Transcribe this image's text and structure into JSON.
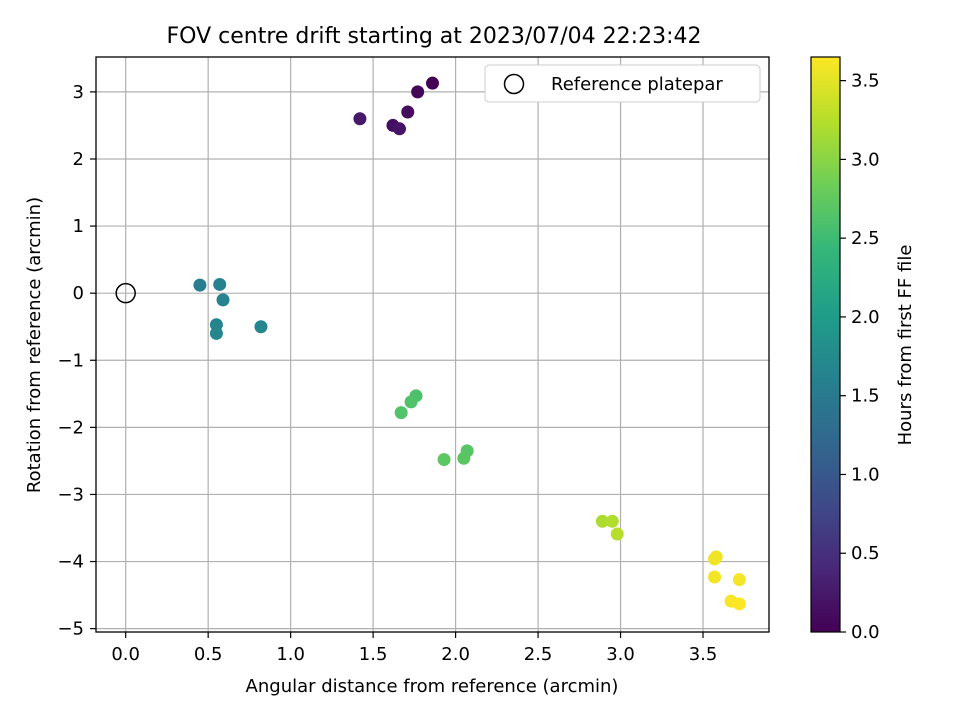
{
  "chart_data": {
    "type": "scatter",
    "title": "FOV centre drift starting at 2023/07/04 22:23:42",
    "xlabel": "Angular distance from reference (arcmin)",
    "ylabel": "Rotation from reference (arcmin)",
    "xlim": [
      -0.18,
      3.9
    ],
    "ylim": [
      -5.05,
      3.52
    ],
    "xticks": [
      "0.0",
      "0.5",
      "1.0",
      "1.5",
      "2.0",
      "2.5",
      "3.0",
      "3.5"
    ],
    "xtick_values": [
      0.0,
      0.5,
      1.0,
      1.5,
      2.0,
      2.5,
      3.0,
      3.5
    ],
    "yticks": [
      "3",
      "2",
      "1",
      "0",
      "−1",
      "−2",
      "−3",
      "−4",
      "−5"
    ],
    "ytick_values": [
      3,
      2,
      1,
      0,
      -1,
      -2,
      -3,
      -4,
      -5
    ],
    "grid": true,
    "legend": {
      "position": "top-right",
      "entries": [
        "Reference platepar"
      ]
    },
    "reference_point": {
      "x": 0.0,
      "y": 0.0,
      "label": "Reference platepar"
    },
    "colorbar": {
      "label": "Hours from first FF file",
      "range": [
        0.0,
        3.65
      ],
      "ticks": [
        "0.0",
        "0.5",
        "1.0",
        "1.5",
        "2.0",
        "2.5",
        "3.0",
        "3.5"
      ],
      "tick_values": [
        0.0,
        0.5,
        1.0,
        1.5,
        2.0,
        2.5,
        3.0,
        3.5
      ],
      "colormap": "viridis"
    },
    "points": [
      {
        "x": 1.86,
        "y": 3.13,
        "hours": 0.0
      },
      {
        "x": 1.77,
        "y": 3.0,
        "hours": 0.05
      },
      {
        "x": 1.71,
        "y": 2.7,
        "hours": 0.1
      },
      {
        "x": 1.62,
        "y": 2.5,
        "hours": 0.15
      },
      {
        "x": 1.66,
        "y": 2.45,
        "hours": 0.2
      },
      {
        "x": 1.42,
        "y": 2.6,
        "hours": 0.25
      },
      {
        "x": 0.45,
        "y": 0.12,
        "hours": 1.55
      },
      {
        "x": 0.57,
        "y": 0.13,
        "hours": 1.6
      },
      {
        "x": 0.59,
        "y": -0.1,
        "hours": 1.62
      },
      {
        "x": 0.55,
        "y": -0.47,
        "hours": 1.65
      },
      {
        "x": 0.82,
        "y": -0.5,
        "hours": 1.68
      },
      {
        "x": 0.55,
        "y": -0.6,
        "hours": 1.7
      },
      {
        "x": 1.76,
        "y": -1.53,
        "hours": 2.6
      },
      {
        "x": 1.73,
        "y": -1.62,
        "hours": 2.62
      },
      {
        "x": 1.67,
        "y": -1.78,
        "hours": 2.64
      },
      {
        "x": 2.07,
        "y": -2.35,
        "hours": 2.68
      },
      {
        "x": 2.05,
        "y": -2.46,
        "hours": 2.7
      },
      {
        "x": 1.93,
        "y": -2.48,
        "hours": 2.72
      },
      {
        "x": 2.89,
        "y": -3.4,
        "hours": 3.2
      },
      {
        "x": 2.95,
        "y": -3.4,
        "hours": 3.22
      },
      {
        "x": 2.98,
        "y": -3.59,
        "hours": 3.25
      },
      {
        "x": 3.58,
        "y": -3.93,
        "hours": 3.55
      },
      {
        "x": 3.57,
        "y": -3.96,
        "hours": 3.57
      },
      {
        "x": 3.57,
        "y": -4.23,
        "hours": 3.58
      },
      {
        "x": 3.72,
        "y": -4.27,
        "hours": 3.6
      },
      {
        "x": 3.67,
        "y": -4.59,
        "hours": 3.62
      },
      {
        "x": 3.72,
        "y": -4.63,
        "hours": 3.65
      }
    ]
  }
}
